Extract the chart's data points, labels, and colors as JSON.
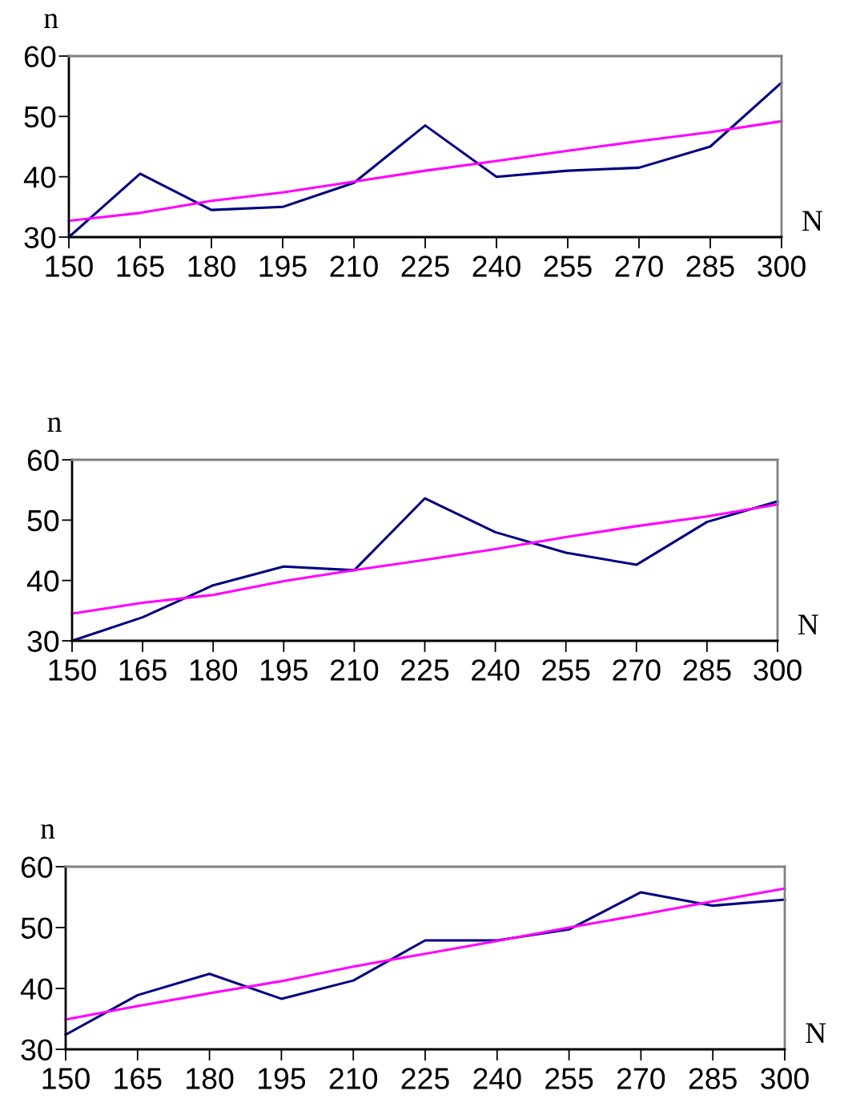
{
  "chart_data": [
    {
      "type": "line",
      "xlabel": "N",
      "ylabel": "n",
      "x": [
        150,
        165,
        180,
        195,
        210,
        225,
        240,
        255,
        270,
        285,
        300
      ],
      "xlim": [
        150,
        300
      ],
      "xticks": [
        150,
        165,
        180,
        195,
        210,
        225,
        240,
        255,
        270,
        285,
        300
      ],
      "ylim": [
        30,
        60
      ],
      "yticks": [
        30,
        40,
        50,
        60
      ],
      "grid": false,
      "legend": false,
      "series": [
        {
          "color": "#000080",
          "values": [
            30,
            40.5,
            34.5,
            35,
            39,
            48.5,
            40,
            41,
            41.5,
            45,
            55.6
          ]
        },
        {
          "type": "line",
          "color": "#ff00ff",
          "values": [
            32.7,
            34.0,
            36.0,
            37.4,
            39.2,
            41.0,
            42.6,
            44.3,
            45.9,
            47.4,
            49.2
          ]
        }
      ]
    },
    {
      "type": "line",
      "xlabel": "N",
      "ylabel": "n",
      "x": [
        150,
        165,
        180,
        195,
        210,
        225,
        240,
        255,
        270,
        285,
        300
      ],
      "xlim": [
        150,
        300
      ],
      "xticks": [
        150,
        165,
        180,
        195,
        210,
        225,
        240,
        255,
        270,
        285,
        300
      ],
      "ylim": [
        30,
        60
      ],
      "yticks": [
        30,
        40,
        50,
        60
      ],
      "grid": false,
      "legend": false,
      "series": [
        {
          "color": "#000080",
          "values": [
            30,
            33.9,
            39.2,
            42.3,
            41.7,
            53.6,
            48,
            44.6,
            42.6,
            49.7,
            53.1
          ]
        },
        {
          "type": "line",
          "color": "#ff00ff",
          "values": [
            34.5,
            36.3,
            37.6,
            39.9,
            41.7,
            43.4,
            45.2,
            47.2,
            49.0,
            50.6,
            52.6
          ]
        }
      ]
    },
    {
      "type": "line",
      "xlabel": "N",
      "ylabel": "n",
      "x": [
        150,
        165,
        180,
        195,
        210,
        225,
        240,
        255,
        270,
        285,
        300
      ],
      "xlim": [
        150,
        300
      ],
      "xticks": [
        150,
        165,
        180,
        195,
        210,
        225,
        240,
        255,
        270,
        285,
        300
      ],
      "ylim": [
        30,
        60
      ],
      "yticks": [
        30,
        40,
        50,
        60
      ],
      "grid": false,
      "legend": false,
      "series": [
        {
          "color": "#000080",
          "values": [
            32.4,
            38.9,
            42.4,
            38.3,
            41.3,
            47.9,
            47.9,
            49.7,
            55.8,
            53.6,
            54.6
          ]
        },
        {
          "type": "line",
          "color": "#ff00ff",
          "values": [
            34.9,
            37.1,
            39.2,
            41.2,
            43.6,
            45.7,
            47.8,
            50.0,
            52.1,
            54.3,
            56.4
          ]
        }
      ]
    }
  ]
}
